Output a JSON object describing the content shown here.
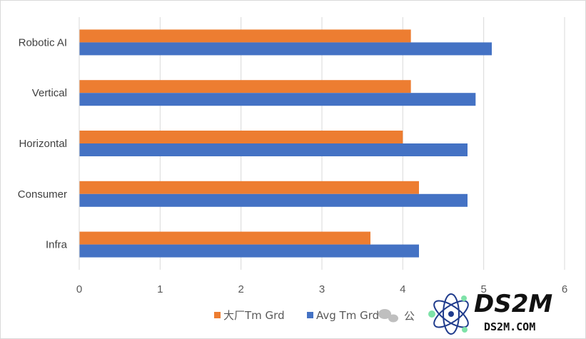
{
  "chart_data": {
    "type": "bar",
    "orientation": "horizontal",
    "categories": [
      "Robotic AI",
      "Vertical",
      "Horizontal",
      "Consumer",
      "Infra"
    ],
    "series": [
      {
        "name": "大厂Tm Grd",
        "color": "#ED7D31",
        "values": [
          4.1,
          4.1,
          4.0,
          4.2,
          3.6
        ]
      },
      {
        "name": "Avg Tm Grd",
        "color": "#4472C4",
        "values": [
          5.1,
          4.9,
          4.8,
          4.8,
          4.2
        ]
      }
    ],
    "xlim": [
      0,
      6
    ],
    "xticks": [
      "0",
      "1",
      "2",
      "3",
      "4",
      "5",
      "6"
    ],
    "grid": true,
    "legend_position": "bottom",
    "title": "",
    "xlabel": "",
    "ylabel": ""
  },
  "watermark": {
    "brand": "DS2M",
    "domain": "DS2M.COM",
    "wechat_fragment": "公"
  }
}
